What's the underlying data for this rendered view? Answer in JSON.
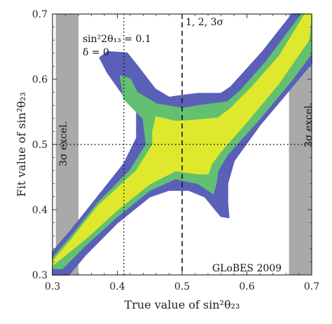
{
  "chart_data": {
    "type": "contour",
    "xlabel": "True value of sin²θ₂₃",
    "ylabel": "Fit value of sin²θ₂₃",
    "xlim": [
      0.3,
      0.7
    ],
    "ylim": [
      0.3,
      0.7
    ],
    "x_ticks": [
      "0.3",
      "0.4",
      "0.5",
      "0.6",
      "0.7"
    ],
    "y_ticks": [
      "0.3",
      "0.4",
      "0.5",
      "0.6",
      "0.7"
    ],
    "grid": false,
    "params_line1": "sin²2θ₁₃ = 0.1",
    "params_line2": "δ = 0",
    "sigma_label": "1, 2, 3σ",
    "credit": "GLoBES 2009",
    "excluded_label": "3σ excel.",
    "excluded_bands": [
      {
        "x_from": 0.305,
        "x_to": 0.34,
        "y_from": 0.3,
        "y_to": 0.7
      },
      {
        "x_from": 0.665,
        "x_to": 0.7,
        "y_from": 0.3,
        "y_to": 0.7
      }
    ],
    "reference_lines": [
      {
        "orientation": "vertical",
        "x": 0.5,
        "style": "dashed"
      },
      {
        "orientation": "vertical",
        "x": 0.41,
        "style": "dotted"
      },
      {
        "orientation": "horizontal",
        "y": 0.5,
        "style": "dotted"
      }
    ],
    "contour_colors": {
      "3sigma": "#5a60b8",
      "2sigma": "#62c070",
      "1sigma": "#dfe82d"
    },
    "contours": [
      {
        "level": "3σ",
        "color": "#5a60b8",
        "points": [
          [
            0.3,
            0.3
          ],
          [
            0.325,
            0.3
          ],
          [
            0.35,
            0.33
          ],
          [
            0.4,
            0.38
          ],
          [
            0.45,
            0.42
          ],
          [
            0.48,
            0.43
          ],
          [
            0.51,
            0.43
          ],
          [
            0.535,
            0.42
          ],
          [
            0.56,
            0.39
          ],
          [
            0.572,
            0.388
          ],
          [
            0.57,
            0.41
          ],
          [
            0.57,
            0.44
          ],
          [
            0.58,
            0.475
          ],
          [
            0.62,
            0.53
          ],
          [
            0.665,
            0.583
          ],
          [
            0.7,
            0.625
          ],
          [
            0.7,
            0.7
          ],
          [
            0.67,
            0.7
          ],
          [
            0.625,
            0.643
          ],
          [
            0.575,
            0.588
          ],
          [
            0.56,
            0.578
          ],
          [
            0.525,
            0.578
          ],
          [
            0.5,
            0.575
          ],
          [
            0.48,
            0.572
          ],
          [
            0.458,
            0.585
          ],
          [
            0.435,
            0.615
          ],
          [
            0.415,
            0.64
          ],
          [
            0.385,
            0.642
          ],
          [
            0.373,
            0.633
          ],
          [
            0.385,
            0.61
          ],
          [
            0.41,
            0.575
          ],
          [
            0.43,
            0.55
          ],
          [
            0.43,
            0.51
          ],
          [
            0.41,
            0.47
          ],
          [
            0.37,
            0.42
          ],
          [
            0.33,
            0.37
          ],
          [
            0.3,
            0.335
          ]
        ]
      },
      {
        "level": "2σ",
        "color": "#62c070",
        "points": [
          [
            0.3,
            0.31
          ],
          [
            0.315,
            0.31
          ],
          [
            0.35,
            0.345
          ],
          [
            0.4,
            0.39
          ],
          [
            0.45,
            0.43
          ],
          [
            0.49,
            0.448
          ],
          [
            0.525,
            0.44
          ],
          [
            0.548,
            0.425
          ],
          [
            0.552,
            0.44
          ],
          [
            0.555,
            0.46
          ],
          [
            0.57,
            0.485
          ],
          [
            0.62,
            0.54
          ],
          [
            0.67,
            0.6
          ],
          [
            0.7,
            0.64
          ],
          [
            0.7,
            0.7
          ],
          [
            0.685,
            0.7
          ],
          [
            0.63,
            0.627
          ],
          [
            0.59,
            0.582
          ],
          [
            0.57,
            0.565
          ],
          [
            0.53,
            0.56
          ],
          [
            0.5,
            0.555
          ],
          [
            0.46,
            0.562
          ],
          [
            0.43,
            0.58
          ],
          [
            0.42,
            0.6
          ],
          [
            0.405,
            0.605
          ],
          [
            0.41,
            0.57
          ],
          [
            0.44,
            0.54
          ],
          [
            0.445,
            0.5
          ],
          [
            0.42,
            0.46
          ],
          [
            0.37,
            0.41
          ],
          [
            0.33,
            0.36
          ],
          [
            0.3,
            0.325
          ]
        ]
      },
      {
        "level": "1σ",
        "color": "#dfe82d",
        "points": [
          [
            0.3,
            0.315
          ],
          [
            0.35,
            0.355
          ],
          [
            0.4,
            0.4
          ],
          [
            0.45,
            0.44
          ],
          [
            0.49,
            0.46
          ],
          [
            0.525,
            0.455
          ],
          [
            0.54,
            0.455
          ],
          [
            0.545,
            0.47
          ],
          [
            0.56,
            0.49
          ],
          [
            0.6,
            0.535
          ],
          [
            0.65,
            0.595
          ],
          [
            0.695,
            0.66
          ],
          [
            0.7,
            0.7
          ],
          [
            0.69,
            0.7
          ],
          [
            0.65,
            0.635
          ],
          [
            0.61,
            0.59
          ],
          [
            0.575,
            0.555
          ],
          [
            0.555,
            0.54
          ],
          [
            0.52,
            0.537
          ],
          [
            0.49,
            0.535
          ],
          [
            0.46,
            0.542
          ],
          [
            0.455,
            0.52
          ],
          [
            0.455,
            0.5
          ],
          [
            0.43,
            0.46
          ],
          [
            0.37,
            0.405
          ],
          [
            0.33,
            0.355
          ],
          [
            0.3,
            0.32
          ]
        ]
      }
    ]
  }
}
